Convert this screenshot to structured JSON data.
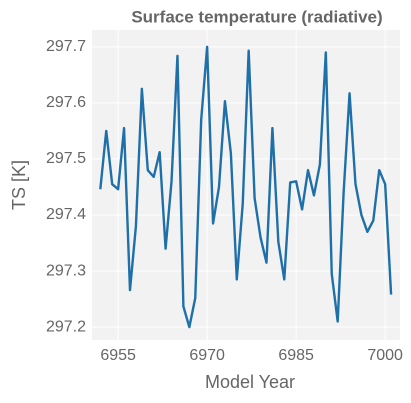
{
  "chart_data": {
    "type": "line",
    "title": "Surface temperature (radiative)",
    "xlabel": "Model Year",
    "ylabel": "TS [K]",
    "x": [
      6952,
      6953,
      6954,
      6955,
      6956,
      6957,
      6958,
      6959,
      6960,
      6961,
      6962,
      6963,
      6964,
      6965,
      6966,
      6967,
      6968,
      6969,
      6970,
      6971,
      6972,
      6973,
      6974,
      6975,
      6976,
      6977,
      6978,
      6979,
      6980,
      6981,
      6982,
      6983,
      6984,
      6985,
      6986,
      6987,
      6988,
      6989,
      6990,
      6991,
      6992,
      6993,
      6994,
      6995,
      6996,
      6997,
      6998,
      6999,
      7000,
      7001
    ],
    "series": [
      {
        "name": "TS",
        "color": "#1f6fa8",
        "values": [
          297.446,
          297.55,
          297.455,
          297.446,
          297.555,
          297.266,
          297.38,
          297.625,
          297.48,
          297.468,
          297.512,
          297.34,
          297.46,
          297.684,
          297.237,
          297.2,
          297.252,
          297.57,
          297.7,
          297.385,
          297.45,
          297.603,
          297.51,
          297.285,
          297.42,
          297.693,
          297.43,
          297.36,
          297.315,
          297.555,
          297.352,
          297.285,
          297.458,
          297.46,
          297.41,
          297.48,
          297.435,
          297.49,
          297.69,
          297.295,
          297.21,
          297.44,
          297.617,
          297.455,
          297.4,
          297.37,
          297.39,
          297.48,
          297.455,
          297.258
        ]
      }
    ],
    "xlim": [
      6950.6,
      7002.5
    ],
    "ylim": [
      297.177,
      297.73
    ],
    "xticks": [
      6955,
      6970,
      6985,
      7000
    ],
    "yticks": [
      297.2,
      297.3,
      297.4,
      297.5,
      297.6,
      297.7
    ],
    "grid": true
  }
}
